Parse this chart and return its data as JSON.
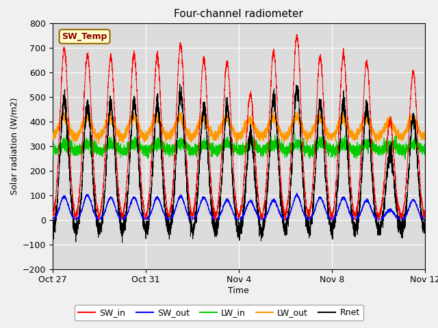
{
  "title": "Four-channel radiometer",
  "xlabel": "Time",
  "ylabel": "Solar radiation (W/m2)",
  "ylim": [
    -200,
    800
  ],
  "yticks": [
    -200,
    -100,
    0,
    100,
    200,
    300,
    400,
    500,
    600,
    700,
    800
  ],
  "xtick_dates": [
    "Oct 27",
    "Oct 31",
    "Nov 4",
    "Nov 8",
    "Nov 12"
  ],
  "xtick_positions": [
    0,
    4,
    8,
    12,
    16
  ],
  "annotation_text": "SW_Temp",
  "annotation_bg": "#ffffcc",
  "annotation_border": "#996600",
  "colors": {
    "SW_in": "#ff0000",
    "SW_out": "#0000ff",
    "LW_in": "#00cc00",
    "LW_out": "#ff9900",
    "Rnet": "#000000"
  },
  "legend_labels": [
    "SW_in",
    "SW_out",
    "LW_in",
    "LW_out",
    "Rnet"
  ],
  "bg_color": "#dcdcdc",
  "fig_bg": "#f0f0f0",
  "n_days": 16,
  "points_per_day": 288,
  "peak_SW_in": [
    695,
    670,
    660,
    670,
    660,
    710,
    650,
    640,
    510,
    680,
    745,
    660,
    670,
    640,
    400,
    600
  ],
  "peak_SW_out": [
    95,
    100,
    90,
    90,
    90,
    95,
    90,
    80,
    75,
    80,
    100,
    90,
    90,
    80,
    40,
    80
  ],
  "LW_in_base": 295,
  "LW_out_base": 355
}
